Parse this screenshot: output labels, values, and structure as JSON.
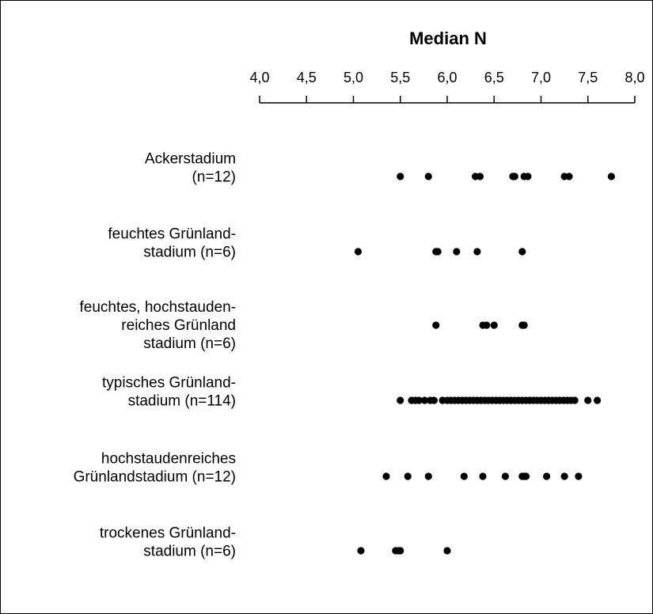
{
  "chart_data": {
    "type": "scatter",
    "title": "Median N",
    "xlabel": "",
    "ylabel": "",
    "xlim": [
      4.0,
      8.0
    ],
    "x_ticks": [
      "4,0",
      "4,5",
      "5,0",
      "5,5",
      "6,0",
      "6,5",
      "7,0",
      "7,5",
      "8,0"
    ],
    "x_axis_position": "top",
    "grid": false,
    "marker_color": "#000000",
    "categories": [
      {
        "label_lines": [
          "Ackerstadium",
          "(n=12)"
        ],
        "values": [
          5.5,
          5.8,
          6.3,
          6.35,
          6.7,
          6.72,
          6.82,
          6.86,
          7.25,
          7.3,
          7.75
        ]
      },
      {
        "label_lines": [
          "feuchtes Grünland-",
          "stadium (n=6)"
        ],
        "values": [
          5.05,
          5.88,
          5.9,
          6.1,
          6.32,
          6.8
        ]
      },
      {
        "label_lines": [
          "feuchtes, hochstauden-",
          "reiches Grünland",
          "stadium (n=6)"
        ],
        "values": [
          5.88,
          6.38,
          6.42,
          6.5,
          6.8,
          6.82
        ]
      },
      {
        "label_lines": [
          "typisches Grünland-",
          "stadium (n=114)"
        ],
        "values": [
          5.5,
          5.62,
          5.66,
          5.7,
          5.76,
          5.82,
          5.86,
          5.95,
          6.0,
          6.04,
          6.08,
          6.12,
          6.16,
          6.2,
          6.24,
          6.28,
          6.32,
          6.36,
          6.4,
          6.44,
          6.48,
          6.52,
          6.56,
          6.6,
          6.64,
          6.68,
          6.72,
          6.76,
          6.8,
          6.84,
          6.88,
          6.92,
          6.96,
          7.0,
          7.04,
          7.08,
          7.12,
          7.16,
          7.2,
          7.24,
          7.28,
          7.32,
          7.36,
          7.5,
          7.6
        ]
      },
      {
        "label_lines": [
          "hochstaudenreiches",
          "Grünlandstadium (n=12)"
        ],
        "values": [
          5.35,
          5.58,
          5.8,
          6.18,
          6.38,
          6.62,
          6.8,
          6.82,
          6.84,
          7.06,
          7.25,
          7.4
        ]
      },
      {
        "label_lines": [
          "trockenes Grünland-",
          "stadium (n=6)"
        ],
        "values": [
          5.08,
          5.45,
          5.48,
          5.5,
          6.0
        ]
      }
    ]
  }
}
